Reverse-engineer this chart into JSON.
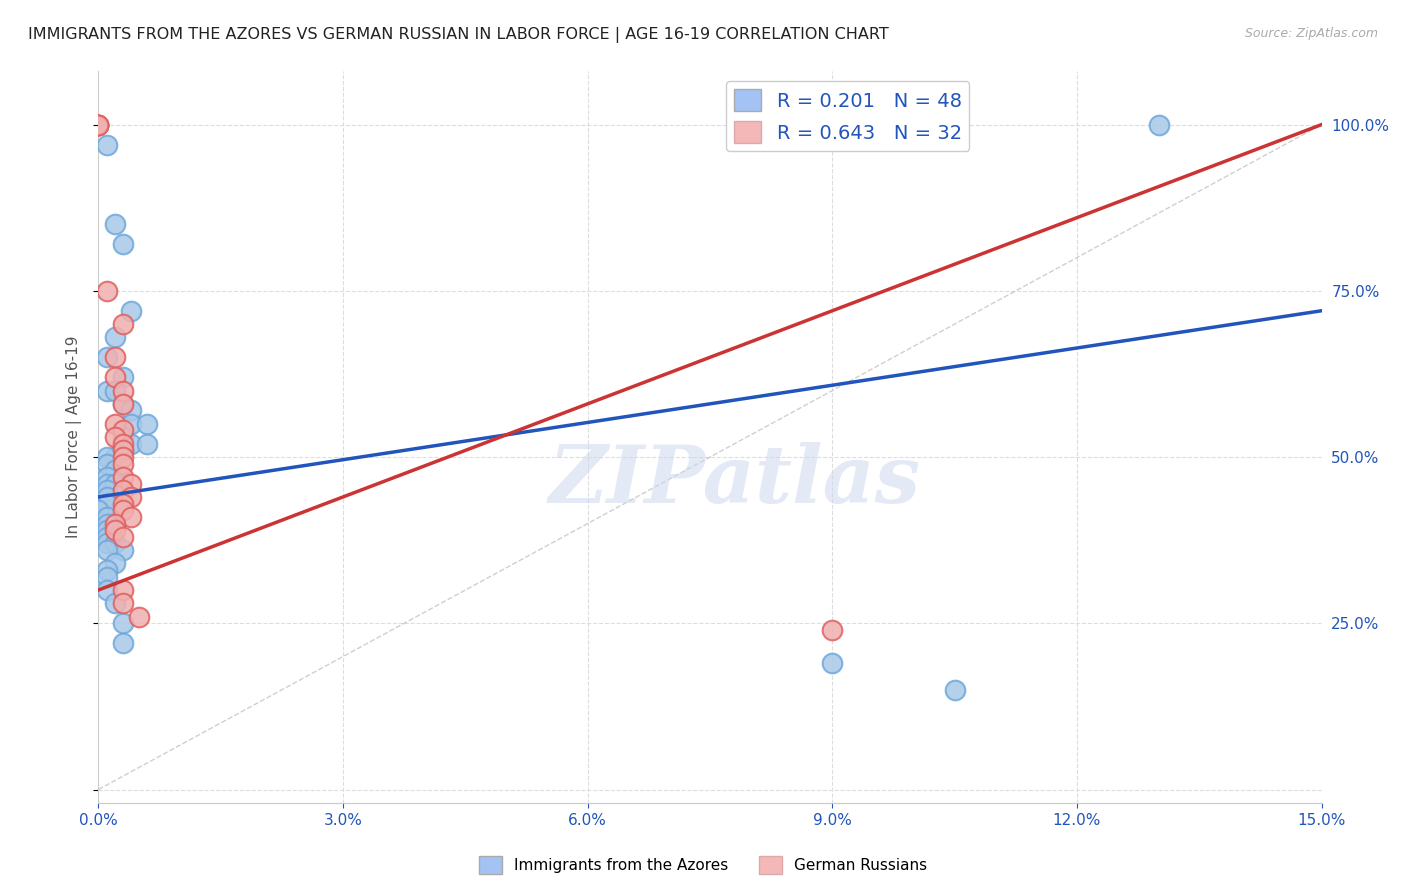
{
  "title": "IMMIGRANTS FROM THE AZORES VS GERMAN RUSSIAN IN LABOR FORCE | AGE 16-19 CORRELATION CHART",
  "source": "Source: ZipAtlas.com",
  "ylabel": "In Labor Force | Age 16-19",
  "xlim": [
    0.0,
    0.15
  ],
  "ylim": [
    -0.02,
    1.08
  ],
  "xticks": [
    0.0,
    0.03,
    0.06,
    0.09,
    0.12,
    0.15
  ],
  "xticklabels": [
    "0.0%",
    "3.0%",
    "6.0%",
    "9.0%",
    "12.0%",
    "15.0%"
  ],
  "right_yticks": [
    0.0,
    0.25,
    0.5,
    0.75,
    1.0
  ],
  "right_yticklabels": [
    "",
    "25.0%",
    "50.0%",
    "75.0%",
    "100.0%"
  ],
  "blue_color": "#a8c8e8",
  "pink_color": "#f0b0b0",
  "blue_edge_color": "#6fa8dc",
  "pink_edge_color": "#e06060",
  "blue_line_color": "#2255bb",
  "pink_line_color": "#cc3333",
  "legend_blue_color": "#a4c2f4",
  "legend_pink_color": "#f4b8b8",
  "R_blue": "0.201",
  "N_blue": "48",
  "R_pink": "0.643",
  "N_pink": "32",
  "watermark": "ZIPatlas",
  "blue_dots": [
    [
      0.001,
      0.97
    ],
    [
      0.002,
      0.85
    ],
    [
      0.003,
      0.82
    ],
    [
      0.004,
      0.72
    ],
    [
      0.002,
      0.68
    ],
    [
      0.001,
      0.65
    ],
    [
      0.003,
      0.62
    ],
    [
      0.001,
      0.6
    ],
    [
      0.002,
      0.6
    ],
    [
      0.003,
      0.58
    ],
    [
      0.004,
      0.57
    ],
    [
      0.004,
      0.55
    ],
    [
      0.003,
      0.53
    ],
    [
      0.004,
      0.52
    ],
    [
      0.003,
      0.51
    ],
    [
      0.002,
      0.5
    ],
    [
      0.001,
      0.5
    ],
    [
      0.001,
      0.49
    ],
    [
      0.002,
      0.48
    ],
    [
      0.001,
      0.47
    ],
    [
      0.001,
      0.46
    ],
    [
      0.002,
      0.46
    ],
    [
      0.001,
      0.45
    ],
    [
      0.001,
      0.44
    ],
    [
      0.001,
      0.43
    ],
    [
      0.001,
      0.43
    ],
    [
      0.0,
      0.42
    ],
    [
      0.001,
      0.41
    ],
    [
      0.002,
      0.4
    ],
    [
      0.001,
      0.4
    ],
    [
      0.001,
      0.39
    ],
    [
      0.001,
      0.38
    ],
    [
      0.001,
      0.37
    ],
    [
      0.002,
      0.37
    ],
    [
      0.003,
      0.36
    ],
    [
      0.001,
      0.36
    ],
    [
      0.002,
      0.34
    ],
    [
      0.001,
      0.33
    ],
    [
      0.001,
      0.32
    ],
    [
      0.001,
      0.3
    ],
    [
      0.002,
      0.28
    ],
    [
      0.003,
      0.25
    ],
    [
      0.003,
      0.22
    ],
    [
      0.006,
      0.55
    ],
    [
      0.006,
      0.52
    ],
    [
      0.09,
      0.19
    ],
    [
      0.105,
      0.15
    ],
    [
      0.13,
      1.0
    ]
  ],
  "pink_dots": [
    [
      0.0,
      1.0
    ],
    [
      0.0,
      1.0
    ],
    [
      0.0,
      1.0
    ],
    [
      0.0,
      1.0
    ],
    [
      0.0,
      1.0
    ],
    [
      0.001,
      0.75
    ],
    [
      0.003,
      0.7
    ],
    [
      0.002,
      0.65
    ],
    [
      0.002,
      0.62
    ],
    [
      0.003,
      0.6
    ],
    [
      0.003,
      0.58
    ],
    [
      0.002,
      0.55
    ],
    [
      0.003,
      0.54
    ],
    [
      0.002,
      0.53
    ],
    [
      0.003,
      0.52
    ],
    [
      0.003,
      0.51
    ],
    [
      0.003,
      0.5
    ],
    [
      0.003,
      0.49
    ],
    [
      0.003,
      0.47
    ],
    [
      0.004,
      0.46
    ],
    [
      0.003,
      0.45
    ],
    [
      0.004,
      0.44
    ],
    [
      0.003,
      0.43
    ],
    [
      0.003,
      0.42
    ],
    [
      0.004,
      0.41
    ],
    [
      0.002,
      0.4
    ],
    [
      0.002,
      0.39
    ],
    [
      0.003,
      0.38
    ],
    [
      0.003,
      0.3
    ],
    [
      0.003,
      0.28
    ],
    [
      0.005,
      0.26
    ],
    [
      0.09,
      0.24
    ]
  ],
  "blue_line_x": [
    0.0,
    0.15
  ],
  "blue_line_y": [
    0.44,
    0.72
  ],
  "pink_line_x": [
    0.0,
    0.15
  ],
  "pink_line_y": [
    0.3,
    1.0
  ],
  "diag_line_x": [
    0.0,
    0.15
  ],
  "diag_line_y": [
    0.0,
    1.0
  ],
  "grid_color": "#dddddd",
  "background_color": "#ffffff",
  "title_fontsize": 11.5,
  "tick_color": "#2255bb"
}
